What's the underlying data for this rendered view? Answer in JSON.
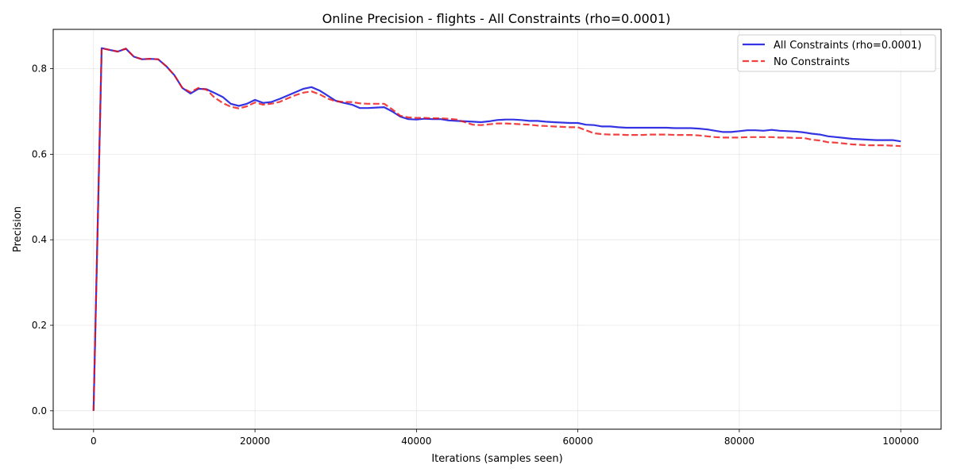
{
  "chart_data": {
    "type": "line",
    "title": "Online Precision - flights - All Constraints (rho=0.0001)",
    "xlabel": "Iterations (samples seen)",
    "ylabel": "Precision",
    "xlim": [
      -5000,
      105000
    ],
    "ylim": [
      -0.043,
      0.892
    ],
    "xticks": [
      0,
      20000,
      40000,
      60000,
      80000,
      100000
    ],
    "yticks": [
      0.0,
      0.2,
      0.4,
      0.6,
      0.8
    ],
    "xtick_labels": [
      "0",
      "20000",
      "40000",
      "60000",
      "80000",
      "100000"
    ],
    "ytick_labels": [
      "0.0",
      "0.2",
      "0.4",
      "0.6",
      "0.8"
    ],
    "grid": true,
    "legend_position": "top-right",
    "series": [
      {
        "name": "All Constraints (rho=0.0001)",
        "color": "#0000dd",
        "style": "solid",
        "x": [
          0,
          1000,
          2000,
          3000,
          4000,
          5000,
          6000,
          7000,
          8000,
          9000,
          10000,
          11000,
          12000,
          13000,
          14000,
          15000,
          16000,
          17000,
          18000,
          19000,
          20000,
          21000,
          22000,
          23000,
          24000,
          25000,
          26000,
          27000,
          28000,
          29000,
          30000,
          31000,
          32000,
          33000,
          34000,
          35000,
          36000,
          37000,
          38000,
          39000,
          40000,
          41000,
          42000,
          43000,
          44000,
          45000,
          46000,
          47000,
          48000,
          49000,
          50000,
          51000,
          52000,
          53000,
          54000,
          55000,
          56000,
          57000,
          58000,
          59000,
          60000,
          61000,
          62000,
          63000,
          64000,
          65000,
          66000,
          67000,
          68000,
          69000,
          70000,
          71000,
          72000,
          73000,
          74000,
          75000,
          76000,
          77000,
          78000,
          79000,
          80000,
          81000,
          82000,
          83000,
          84000,
          85000,
          86000,
          87000,
          88000,
          89000,
          90000,
          91000,
          92000,
          93000,
          94000,
          95000,
          96000,
          97000,
          98000,
          99000,
          100000
        ],
        "y": [
          0.0,
          0.848,
          0.844,
          0.84,
          0.847,
          0.828,
          0.822,
          0.823,
          0.822,
          0.806,
          0.785,
          0.755,
          0.742,
          0.753,
          0.752,
          0.743,
          0.734,
          0.718,
          0.713,
          0.718,
          0.727,
          0.72,
          0.722,
          0.729,
          0.737,
          0.745,
          0.753,
          0.757,
          0.749,
          0.737,
          0.725,
          0.72,
          0.716,
          0.708,
          0.708,
          0.709,
          0.71,
          0.7,
          0.688,
          0.682,
          0.681,
          0.683,
          0.682,
          0.682,
          0.679,
          0.678,
          0.677,
          0.676,
          0.675,
          0.677,
          0.68,
          0.681,
          0.681,
          0.68,
          0.678,
          0.678,
          0.676,
          0.675,
          0.674,
          0.673,
          0.673,
          0.669,
          0.668,
          0.665,
          0.665,
          0.663,
          0.662,
          0.662,
          0.662,
          0.662,
          0.662,
          0.662,
          0.661,
          0.661,
          0.661,
          0.66,
          0.658,
          0.655,
          0.652,
          0.652,
          0.654,
          0.656,
          0.656,
          0.655,
          0.657,
          0.655,
          0.654,
          0.653,
          0.651,
          0.648,
          0.646,
          0.642,
          0.64,
          0.638,
          0.636,
          0.635,
          0.634,
          0.633,
          0.633,
          0.633,
          0.63
        ]
      },
      {
        "name": "No Constraints",
        "color": "#ee1111",
        "style": "dashed",
        "x": [
          0,
          1000,
          2000,
          3000,
          4000,
          5000,
          6000,
          7000,
          8000,
          9000,
          10000,
          11000,
          12000,
          13000,
          14000,
          15000,
          16000,
          17000,
          18000,
          19000,
          20000,
          21000,
          22000,
          23000,
          24000,
          25000,
          26000,
          27000,
          28000,
          29000,
          30000,
          31000,
          32000,
          33000,
          34000,
          35000,
          36000,
          37000,
          38000,
          39000,
          40000,
          41000,
          42000,
          43000,
          44000,
          45000,
          46000,
          47000,
          48000,
          49000,
          50000,
          51000,
          52000,
          53000,
          54000,
          55000,
          56000,
          57000,
          58000,
          59000,
          60000,
          61000,
          62000,
          63000,
          64000,
          65000,
          66000,
          67000,
          68000,
          69000,
          70000,
          71000,
          72000,
          73000,
          74000,
          75000,
          76000,
          77000,
          78000,
          79000,
          80000,
          81000,
          82000,
          83000,
          84000,
          85000,
          86000,
          87000,
          88000,
          89000,
          90000,
          91000,
          92000,
          93000,
          94000,
          95000,
          96000,
          97000,
          98000,
          99000,
          100000
        ],
        "y": [
          0.0,
          0.848,
          0.844,
          0.84,
          0.847,
          0.828,
          0.822,
          0.823,
          0.822,
          0.806,
          0.785,
          0.755,
          0.745,
          0.755,
          0.751,
          0.732,
          0.72,
          0.711,
          0.707,
          0.712,
          0.721,
          0.716,
          0.718,
          0.722,
          0.73,
          0.738,
          0.744,
          0.747,
          0.74,
          0.73,
          0.724,
          0.722,
          0.722,
          0.719,
          0.718,
          0.718,
          0.718,
          0.705,
          0.69,
          0.686,
          0.685,
          0.685,
          0.684,
          0.684,
          0.683,
          0.681,
          0.675,
          0.669,
          0.668,
          0.67,
          0.672,
          0.672,
          0.671,
          0.67,
          0.669,
          0.667,
          0.666,
          0.665,
          0.664,
          0.663,
          0.663,
          0.656,
          0.649,
          0.647,
          0.646,
          0.646,
          0.645,
          0.645,
          0.645,
          0.646,
          0.646,
          0.646,
          0.645,
          0.645,
          0.645,
          0.644,
          0.642,
          0.64,
          0.639,
          0.639,
          0.639,
          0.64,
          0.64,
          0.64,
          0.64,
          0.639,
          0.639,
          0.638,
          0.638,
          0.634,
          0.632,
          0.628,
          0.627,
          0.625,
          0.623,
          0.622,
          0.621,
          0.621,
          0.621,
          0.62,
          0.619
        ]
      }
    ]
  }
}
